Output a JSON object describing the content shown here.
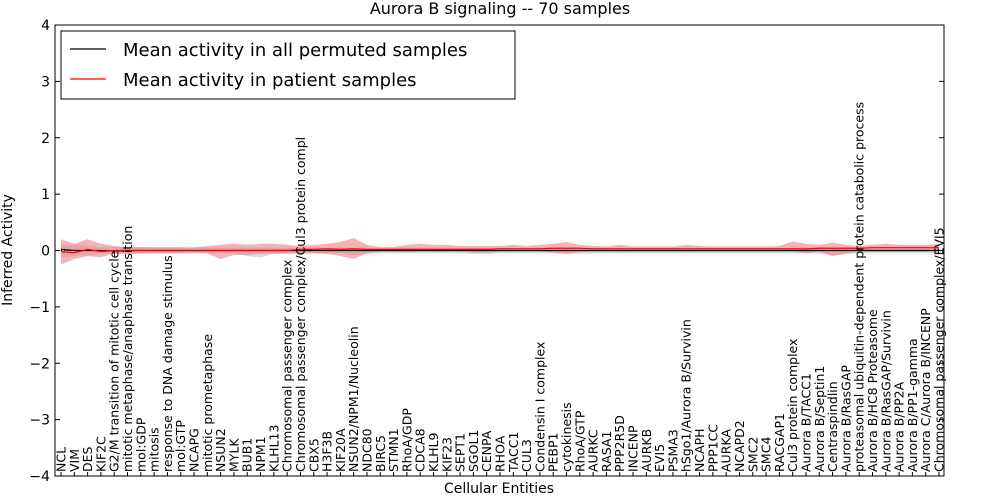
{
  "chart_data": {
    "type": "line",
    "title": "Aurora B signaling -- 70 samples",
    "xlabel": "Cellular Entities",
    "ylabel": "Inferred Activity",
    "ylim": [
      -4,
      4
    ],
    "yticks": [
      -4,
      -3,
      -2,
      -1,
      0,
      1,
      2,
      3,
      4
    ],
    "grid": false,
    "legend_position": "top-left",
    "colors": {
      "permuted": "#000000",
      "patient": "#ff0000",
      "patient_band": "#f08080",
      "permuted_band": "#b8bccc"
    },
    "categories": [
      "NCL",
      "VIM",
      "DES",
      "KIF2C",
      "G2/M transition of mitotic cell cycle",
      "mitotic metaphase/anaphase transition",
      "mol:GDP",
      "mitosis",
      "response to DNA damage stimulus",
      "mol:GTP",
      "NCAPG",
      "mitotic prometaphase",
      "NSUN2",
      "MYLK",
      "BUB1",
      "NPM1",
      "KLHL13",
      "Chromosomal passenger complex",
      "Chromosomal passenger complex/Cul3 protein compl",
      "CBX5",
      "H3F3B",
      "KIF20A",
      "NSUN2/NPM1/Nucleolin",
      "NDC80",
      "BIRC5",
      "STMN1",
      "RhoA/GDP",
      "CDCA8",
      "KLHL9",
      "KIF23",
      "SEPT1",
      "SGOL1",
      "CENPA",
      "RHOA",
      "TACC1",
      "CUL3",
      "Condensin I complex",
      "PEBP1",
      "cytokinesis",
      "RhoA/GTP",
      "AURKC",
      "RASA1",
      "PPP2R5D",
      "INCENP",
      "AURKB",
      "EVI5",
      "PSMA3",
      "hSgo1/Aurora B/Survivin",
      "NCAPH",
      "PPP1CC",
      "AURKA",
      "NCAPD2",
      "SMC2",
      "SMC4",
      "RACGAP1",
      "Cul3 protein complex",
      "Aurora B/TACC1",
      "Aurora B/Septin1",
      "Centraspindlin",
      "Aurora B/RasGAP",
      "proteasomal ubiquitin-dependent protein catabolic process",
      "Aurora B/HC8 Proteasome",
      "Aurora B/RasGAP/Survivin",
      "Aurora B/PP2A",
      "Aurora B/PP1-gamma",
      "Aurora C/Aurora B/INCENP",
      "Chromosomal passenger complex/EVI5"
    ],
    "series": [
      {
        "name": "Mean activity in all permuted samples",
        "color": "#000000",
        "values": [
          0.02,
          0.0,
          0.0,
          0.0,
          -0.01,
          0.0,
          0.0,
          0.0,
          0.0,
          0.0,
          0.0,
          0.0,
          0.0,
          0.0,
          0.0,
          0.0,
          0.0,
          0.0,
          0.0,
          0.0,
          0.0,
          0.0,
          0.0,
          0.0,
          0.0,
          0.0,
          0.0,
          0.0,
          0.0,
          0.0,
          0.0,
          0.0,
          0.0,
          0.0,
          0.0,
          0.0,
          0.0,
          0.0,
          0.0,
          0.0,
          0.0,
          0.0,
          0.0,
          0.0,
          0.0,
          0.0,
          0.0,
          0.0,
          0.0,
          0.0,
          0.0,
          0.0,
          0.0,
          0.0,
          0.0,
          0.0,
          0.0,
          0.0,
          0.0,
          0.0,
          0.0,
          0.0,
          0.0,
          0.0,
          0.0,
          0.0,
          0.0
        ],
        "band_upper": [
          0.1,
          0.1,
          0.08,
          0.06,
          0.06,
          0.06,
          0.06,
          0.05,
          0.05,
          0.05,
          0.06,
          0.05,
          0.05,
          0.05,
          0.05,
          0.05,
          0.05,
          0.05,
          0.05,
          0.05,
          0.05,
          0.05,
          0.05,
          0.05,
          0.05,
          0.05,
          0.05,
          0.05,
          0.05,
          0.05,
          0.05,
          0.05,
          0.05,
          0.05,
          0.05,
          0.05,
          0.05,
          0.05,
          0.05,
          0.05,
          0.05,
          0.05,
          0.05,
          0.05,
          0.05,
          0.05,
          0.05,
          0.05,
          0.05,
          0.05,
          0.05,
          0.05,
          0.05,
          0.05,
          0.05,
          0.05,
          0.05,
          0.05,
          0.05,
          0.05,
          0.05,
          0.05,
          0.05,
          0.05,
          0.05,
          0.05,
          0.05
        ],
        "band_lower": [
          -0.12,
          -0.1,
          -0.08,
          -0.06,
          -0.06,
          -0.06,
          -0.06,
          -0.05,
          -0.05,
          -0.05,
          -0.06,
          -0.05,
          -0.05,
          -0.05,
          -0.1,
          -0.12,
          -0.06,
          -0.06,
          -0.05,
          -0.05,
          -0.05,
          -0.05,
          -0.08,
          -0.06,
          -0.05,
          -0.05,
          -0.05,
          -0.05,
          -0.05,
          -0.05,
          -0.05,
          -0.06,
          -0.06,
          -0.05,
          -0.05,
          -0.05,
          -0.05,
          -0.05,
          -0.06,
          -0.06,
          -0.05,
          -0.05,
          -0.05,
          -0.05,
          -0.05,
          -0.05,
          -0.05,
          -0.05,
          -0.05,
          -0.05,
          -0.05,
          -0.05,
          -0.05,
          -0.05,
          -0.05,
          -0.05,
          -0.05,
          -0.06,
          -0.08,
          -0.06,
          -0.05,
          -0.05,
          -0.05,
          -0.05,
          -0.05,
          -0.05,
          -0.05
        ]
      },
      {
        "name": "Mean activity in patient samples",
        "color": "#ff0000",
        "values": [
          -0.02,
          -0.04,
          0.02,
          -0.02,
          0.0,
          0.0,
          0.0,
          0.0,
          0.0,
          0.0,
          0.0,
          0.0,
          0.0,
          0.0,
          0.0,
          0.0,
          0.0,
          0.0,
          0.02,
          0.02,
          0.03,
          0.02,
          0.03,
          0.02,
          0.02,
          0.02,
          0.02,
          0.02,
          0.02,
          0.02,
          0.02,
          0.02,
          0.02,
          0.03,
          0.03,
          0.03,
          0.03,
          0.04,
          0.04,
          0.04,
          0.03,
          0.03,
          0.03,
          0.03,
          0.03,
          0.03,
          0.03,
          0.03,
          0.03,
          0.03,
          0.03,
          0.03,
          0.03,
          0.03,
          0.03,
          0.03,
          0.03,
          0.04,
          0.04,
          0.04,
          0.04,
          0.05,
          0.05,
          0.05,
          0.05,
          0.05,
          0.05
        ],
        "band_upper": [
          0.2,
          0.12,
          0.2,
          0.12,
          0.08,
          0.06,
          0.06,
          0.06,
          0.06,
          0.06,
          0.05,
          0.08,
          0.1,
          0.12,
          0.1,
          0.12,
          0.12,
          0.1,
          0.08,
          0.1,
          0.12,
          0.15,
          0.22,
          0.1,
          0.06,
          0.06,
          0.1,
          0.12,
          0.1,
          0.1,
          0.08,
          0.08,
          0.08,
          0.08,
          0.1,
          0.08,
          0.1,
          0.12,
          0.15,
          0.1,
          0.08,
          0.07,
          0.1,
          0.07,
          0.07,
          0.07,
          0.07,
          0.1,
          0.08,
          0.07,
          0.07,
          0.07,
          0.07,
          0.07,
          0.08,
          0.16,
          0.12,
          0.1,
          0.14,
          0.1,
          0.08,
          0.1,
          0.12,
          0.1,
          0.1,
          0.1,
          0.12
        ],
        "band_lower": [
          -0.25,
          -0.15,
          -0.1,
          -0.12,
          -0.05,
          -0.06,
          -0.05,
          -0.05,
          -0.05,
          -0.05,
          -0.03,
          -0.05,
          -0.15,
          -0.08,
          -0.08,
          -0.06,
          -0.06,
          -0.05,
          -0.05,
          -0.05,
          -0.06,
          -0.1,
          -0.15,
          -0.05,
          -0.02,
          -0.02,
          -0.03,
          -0.02,
          -0.02,
          -0.02,
          -0.02,
          -0.04,
          -0.04,
          -0.02,
          -0.02,
          -0.02,
          -0.02,
          -0.04,
          -0.06,
          -0.03,
          -0.02,
          -0.02,
          -0.03,
          -0.02,
          -0.02,
          -0.02,
          -0.02,
          -0.03,
          -0.02,
          -0.02,
          -0.02,
          -0.02,
          -0.02,
          -0.02,
          -0.02,
          -0.02,
          -0.05,
          -0.02,
          -0.1,
          -0.06,
          -0.02,
          -0.02,
          -0.02,
          -0.02,
          -0.02,
          -0.02,
          -0.02
        ]
      }
    ]
  }
}
